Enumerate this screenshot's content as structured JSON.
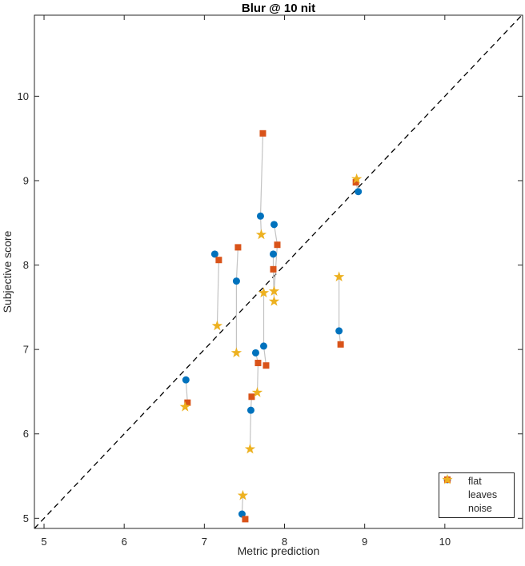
{
  "chart_data": {
    "type": "scatter",
    "title": "Blur @ 10 nit",
    "xlabel": "Metric prediction",
    "ylabel": "Subjective score",
    "xlim": [
      4.88,
      10.97
    ],
    "ylim": [
      4.88,
      10.96
    ],
    "xticks": [
      "5",
      "6",
      "7",
      "8",
      "9",
      "10"
    ],
    "xtick_values": [
      5,
      6,
      7,
      8,
      9,
      10
    ],
    "yticks": [
      "5",
      "6",
      "7",
      "8",
      "9",
      "10"
    ],
    "ytick_values": [
      5,
      6,
      7,
      8,
      9,
      10
    ],
    "grid": false,
    "legend_position": "lower-right",
    "axis_color": "#262626",
    "connector_color": "#c3c3c3",
    "identity_line": {
      "style": "dashed",
      "color": "#000000",
      "from": [
        4.88,
        4.88
      ],
      "to": [
        10.96,
        10.96
      ]
    },
    "series": [
      {
        "name": "flat",
        "marker": "circle",
        "color": "#0072BD",
        "points": [
          [
            6.77,
            6.64
          ],
          [
            7.13,
            8.13
          ],
          [
            7.4,
            7.81
          ],
          [
            7.47,
            5.05
          ],
          [
            7.58,
            6.28
          ],
          [
            7.64,
            6.96
          ],
          [
            7.74,
            7.04
          ],
          [
            7.7,
            8.58
          ],
          [
            7.87,
            8.48
          ],
          [
            7.86,
            8.13
          ],
          [
            8.68,
            7.22
          ],
          [
            8.92,
            8.87
          ]
        ]
      },
      {
        "name": "leaves",
        "marker": "square",
        "color": "#D95319",
        "points": [
          [
            6.79,
            6.37
          ],
          [
            7.18,
            8.06
          ],
          [
            7.42,
            8.21
          ],
          [
            7.51,
            4.99
          ],
          [
            7.59,
            6.44
          ],
          [
            7.67,
            6.84
          ],
          [
            7.77,
            6.81
          ],
          [
            7.73,
            9.56
          ],
          [
            7.91,
            8.24
          ],
          [
            7.86,
            7.95
          ],
          [
            8.7,
            7.06
          ],
          [
            8.89,
            8.98
          ]
        ]
      },
      {
        "name": "noise",
        "marker": "star",
        "color": "#EDB120",
        "points": [
          [
            6.76,
            6.32
          ],
          [
            7.16,
            7.28
          ],
          [
            7.4,
            6.96
          ],
          [
            7.48,
            5.27
          ],
          [
            7.57,
            5.82
          ],
          [
            7.66,
            6.49
          ],
          [
            7.74,
            7.67
          ],
          [
            7.71,
            8.36
          ],
          [
            7.87,
            7.69
          ],
          [
            7.87,
            7.57
          ],
          [
            8.68,
            7.86
          ],
          [
            8.9,
            9.02
          ]
        ]
      }
    ]
  }
}
